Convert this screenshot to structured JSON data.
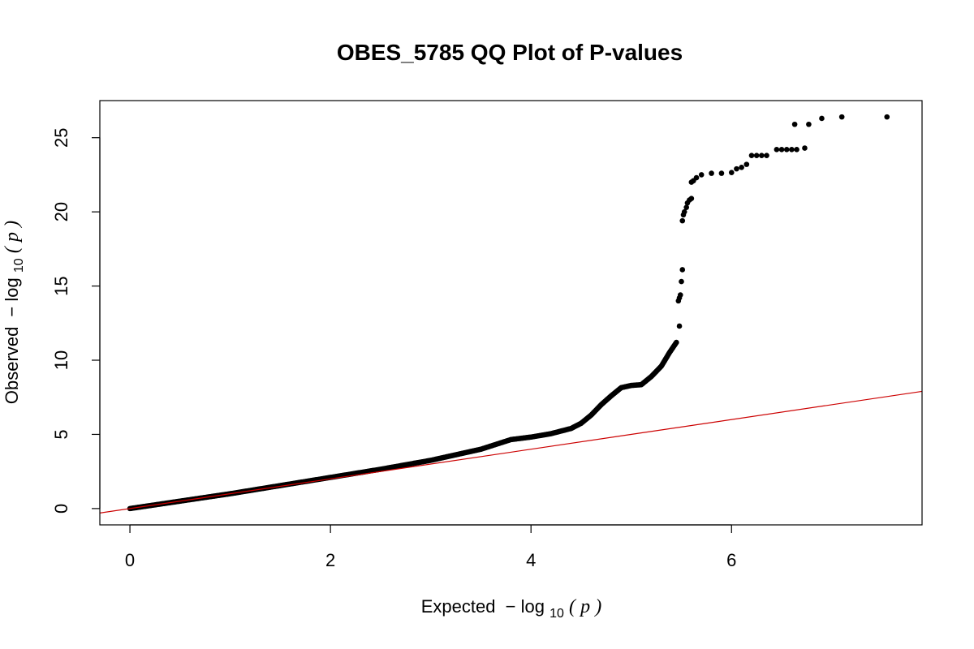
{
  "chart_data": {
    "type": "scatter",
    "title": "OBES_5785 QQ Plot of P-values",
    "xlabel": {
      "prefix": "Expected",
      "minus": "−",
      "log": "log",
      "base": "10",
      "open": "(",
      "var": "p",
      "close": ")"
    },
    "ylabel": {
      "prefix": "Observed",
      "minus": "−",
      "log": "log",
      "base": "10",
      "open": "(",
      "var": "p",
      "close": ")"
    },
    "xlim": [
      -0.3,
      7.9
    ],
    "ylim": [
      -1.1,
      27.5
    ],
    "x_ticks": [
      {
        "value": 0,
        "label": "0"
      },
      {
        "value": 2,
        "label": "2"
      },
      {
        "value": 4,
        "label": "4"
      },
      {
        "value": 6,
        "label": "6"
      }
    ],
    "y_ticks": [
      {
        "value": 0,
        "label": "0"
      },
      {
        "value": 5,
        "label": "5"
      },
      {
        "value": 10,
        "label": "10"
      },
      {
        "value": 15,
        "label": "15"
      },
      {
        "value": 20,
        "label": "20"
      },
      {
        "value": 25,
        "label": "25"
      }
    ],
    "reference_line": {
      "slope": 1,
      "intercept": 0,
      "color": "#cc0000"
    },
    "point_color": "#000000",
    "curve_points": [
      [
        0,
        0
      ],
      [
        0.3,
        0.3
      ],
      [
        0.6,
        0.6
      ],
      [
        1.0,
        1.0
      ],
      [
        1.5,
        1.55
      ],
      [
        2.0,
        2.1
      ],
      [
        2.5,
        2.65
      ],
      [
        3.0,
        3.25
      ],
      [
        3.5,
        4.0
      ],
      [
        3.8,
        4.65
      ],
      [
        4.0,
        4.82
      ],
      [
        4.2,
        5.05
      ],
      [
        4.4,
        5.4
      ],
      [
        4.5,
        5.75
      ],
      [
        4.6,
        6.3
      ],
      [
        4.7,
        7.0
      ],
      [
        4.8,
        7.6
      ],
      [
        4.9,
        8.15
      ],
      [
        5.0,
        8.3
      ],
      [
        5.1,
        8.35
      ],
      [
        5.2,
        8.9
      ],
      [
        5.3,
        9.6
      ],
      [
        5.38,
        10.5
      ],
      [
        5.45,
        11.2
      ]
    ],
    "points": [
      [
        5.48,
        12.3
      ],
      [
        5.47,
        14.0
      ],
      [
        5.48,
        14.2
      ],
      [
        5.49,
        14.4
      ],
      [
        5.5,
        15.3
      ],
      [
        5.51,
        16.1
      ],
      [
        5.51,
        19.4
      ],
      [
        5.52,
        19.8
      ],
      [
        5.53,
        20.0
      ],
      [
        5.55,
        20.3
      ],
      [
        5.56,
        20.6
      ],
      [
        5.58,
        20.8
      ],
      [
        5.6,
        20.9
      ],
      [
        5.6,
        22.0
      ],
      [
        5.62,
        22.1
      ],
      [
        5.65,
        22.3
      ],
      [
        5.7,
        22.5
      ],
      [
        5.8,
        22.6
      ],
      [
        5.9,
        22.6
      ],
      [
        6.0,
        22.65
      ],
      [
        6.05,
        22.9
      ],
      [
        6.1,
        23.0
      ],
      [
        6.15,
        23.2
      ],
      [
        6.2,
        23.8
      ],
      [
        6.25,
        23.8
      ],
      [
        6.3,
        23.8
      ],
      [
        6.35,
        23.8
      ],
      [
        6.45,
        24.2
      ],
      [
        6.5,
        24.2
      ],
      [
        6.55,
        24.2
      ],
      [
        6.6,
        24.2
      ],
      [
        6.65,
        24.2
      ],
      [
        6.73,
        24.3
      ],
      [
        6.63,
        25.9
      ],
      [
        6.77,
        25.9
      ],
      [
        6.9,
        26.3
      ],
      [
        7.1,
        26.4
      ],
      [
        7.55,
        26.4
      ]
    ]
  }
}
